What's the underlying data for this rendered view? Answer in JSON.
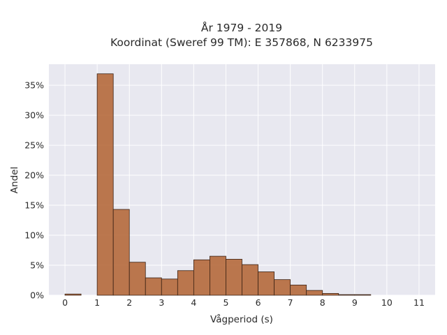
{
  "chart_data": {
    "type": "bar",
    "title_line1": "År 1979 - 2019",
    "title_line2": "Koordinat (Sweref 99 TM): E 357868, N 6233975",
    "xlabel": "Vågperiod (s)",
    "ylabel": "Andel",
    "xlim": [
      -0.5,
      11.5
    ],
    "ylim": [
      0,
      0.385
    ],
    "grid": true,
    "bin_width": 0.5,
    "x_ticks": [
      0,
      1,
      2,
      3,
      4,
      5,
      6,
      7,
      8,
      9,
      10,
      11
    ],
    "x_tick_labels": [
      "0",
      "1",
      "2",
      "3",
      "4",
      "5",
      "6",
      "7",
      "8",
      "9",
      "10",
      "11"
    ],
    "y_ticks": [
      0,
      0.05,
      0.1,
      0.15,
      0.2,
      0.25,
      0.3,
      0.35
    ],
    "y_tick_labels": [
      "0%",
      "5%",
      "10%",
      "15%",
      "20%",
      "25%",
      "30%",
      "35%"
    ],
    "bins_left": [
      0,
      1,
      1.5,
      2,
      2.5,
      3,
      3.5,
      4,
      4.5,
      5,
      5.5,
      6,
      6.5,
      7,
      7.5,
      8,
      8.5,
      9
    ],
    "values": [
      0.002,
      0.369,
      0.143,
      0.055,
      0.029,
      0.027,
      0.041,
      0.059,
      0.065,
      0.06,
      0.051,
      0.039,
      0.026,
      0.017,
      0.008,
      0.003,
      0.001,
      0.001
    ],
    "bar_color": "#b5693b",
    "bar_edge_color": "#3a2215",
    "plot_bg": "#e8e8f0",
    "grid_color": "#ffffff"
  }
}
